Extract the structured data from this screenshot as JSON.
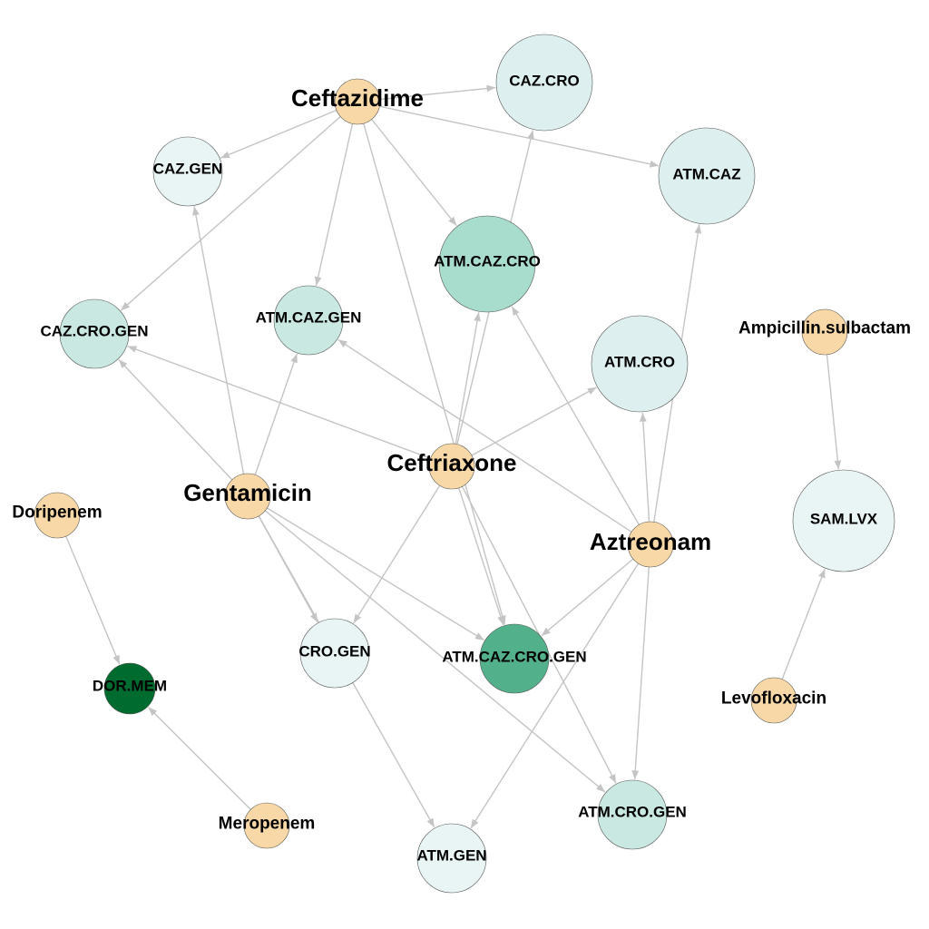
{
  "graph": {
    "colors": {
      "edge": "#c4c4c4",
      "drug": "#f8d8a6",
      "combo_palette": [
        "#e9f5f5",
        "#ddf0ef",
        "#c8e8e1",
        "#a8dccd",
        "#52b08a",
        "#006b2e"
      ]
    },
    "nodes": [
      {
        "id": "ceftazidime",
        "label": "Ceftazidime",
        "kind": "drug",
        "shade": 0
      },
      {
        "id": "ceftriaxone",
        "label": "Ceftriaxone",
        "kind": "drug",
        "shade": 0
      },
      {
        "id": "gentamicin",
        "label": "Gentamicin",
        "kind": "drug",
        "shade": 0
      },
      {
        "id": "aztreonam",
        "label": "Aztreonam",
        "kind": "drug",
        "shade": 0
      },
      {
        "id": "doripenem",
        "label": "Doripenem",
        "kind": "drug",
        "shade": 0
      },
      {
        "id": "meropenem",
        "label": "Meropenem",
        "kind": "drug",
        "shade": 0
      },
      {
        "id": "ampicillin-sulbactam",
        "label": "Ampicillin.sulbactam",
        "kind": "drug",
        "shade": 0
      },
      {
        "id": "levofloxacin",
        "label": "Levofloxacin",
        "kind": "drug",
        "shade": 0
      },
      {
        "id": "caz-cro",
        "label": "CAZ.CRO",
        "kind": "combo",
        "shade": 1
      },
      {
        "id": "caz-gen",
        "label": "CAZ.GEN",
        "kind": "combo",
        "shade": 0
      },
      {
        "id": "atm-caz",
        "label": "ATM.CAZ",
        "kind": "combo",
        "shade": 1
      },
      {
        "id": "atm-caz-cro",
        "label": "ATM.CAZ.CRO",
        "kind": "combo",
        "shade": 3
      },
      {
        "id": "caz-cro-gen",
        "label": "CAZ.CRO.GEN",
        "kind": "combo",
        "shade": 2
      },
      {
        "id": "atm-caz-gen",
        "label": "ATM.CAZ.GEN",
        "kind": "combo",
        "shade": 2
      },
      {
        "id": "atm-cro",
        "label": "ATM.CRO",
        "kind": "combo",
        "shade": 1
      },
      {
        "id": "sam-lvx",
        "label": "SAM.LVX",
        "kind": "combo",
        "shade": 0
      },
      {
        "id": "cro-gen",
        "label": "CRO.GEN",
        "kind": "combo",
        "shade": 0
      },
      {
        "id": "atm-caz-cro-gen",
        "label": "ATM.CAZ.CRO.GEN",
        "kind": "combo",
        "shade": 4
      },
      {
        "id": "dor-mem",
        "label": "DOR.MEM",
        "kind": "combo",
        "shade": 5
      },
      {
        "id": "atm-cro-gen",
        "label": "ATM.CRO.GEN",
        "kind": "combo",
        "shade": 2
      },
      {
        "id": "atm-gen",
        "label": "ATM.GEN",
        "kind": "combo",
        "shade": 0
      }
    ],
    "edges": [
      [
        "ceftazidime",
        "caz-cro"
      ],
      [
        "ceftazidime",
        "caz-gen"
      ],
      [
        "ceftazidime",
        "atm-caz"
      ],
      [
        "ceftazidime",
        "atm-caz-cro"
      ],
      [
        "ceftazidime",
        "caz-cro-gen"
      ],
      [
        "ceftazidime",
        "atm-caz-gen"
      ],
      [
        "ceftazidime",
        "atm-caz-cro-gen"
      ],
      [
        "ceftriaxone",
        "caz-cro"
      ],
      [
        "ceftriaxone",
        "atm-caz-cro"
      ],
      [
        "ceftriaxone",
        "caz-cro-gen"
      ],
      [
        "ceftriaxone",
        "atm-cro"
      ],
      [
        "ceftriaxone",
        "cro-gen"
      ],
      [
        "ceftriaxone",
        "atm-caz-cro-gen"
      ],
      [
        "ceftriaxone",
        "atm-cro-gen"
      ],
      [
        "gentamicin",
        "caz-gen"
      ],
      [
        "gentamicin",
        "caz-cro-gen"
      ],
      [
        "gentamicin",
        "atm-caz-gen"
      ],
      [
        "gentamicin",
        "cro-gen"
      ],
      [
        "gentamicin",
        "atm-caz-cro-gen"
      ],
      [
        "gentamicin",
        "atm-cro-gen"
      ],
      [
        "gentamicin",
        "atm-gen"
      ],
      [
        "aztreonam",
        "atm-caz"
      ],
      [
        "aztreonam",
        "atm-caz-cro"
      ],
      [
        "aztreonam",
        "atm-caz-gen"
      ],
      [
        "aztreonam",
        "atm-cro"
      ],
      [
        "aztreonam",
        "atm-caz-cro-gen"
      ],
      [
        "aztreonam",
        "atm-cro-gen"
      ],
      [
        "aztreonam",
        "atm-gen"
      ],
      [
        "doripenem",
        "dor-mem"
      ],
      [
        "meropenem",
        "dor-mem"
      ],
      [
        "ampicillin-sulbactam",
        "sam-lvx"
      ],
      [
        "levofloxacin",
        "sam-lvx"
      ]
    ]
  }
}
